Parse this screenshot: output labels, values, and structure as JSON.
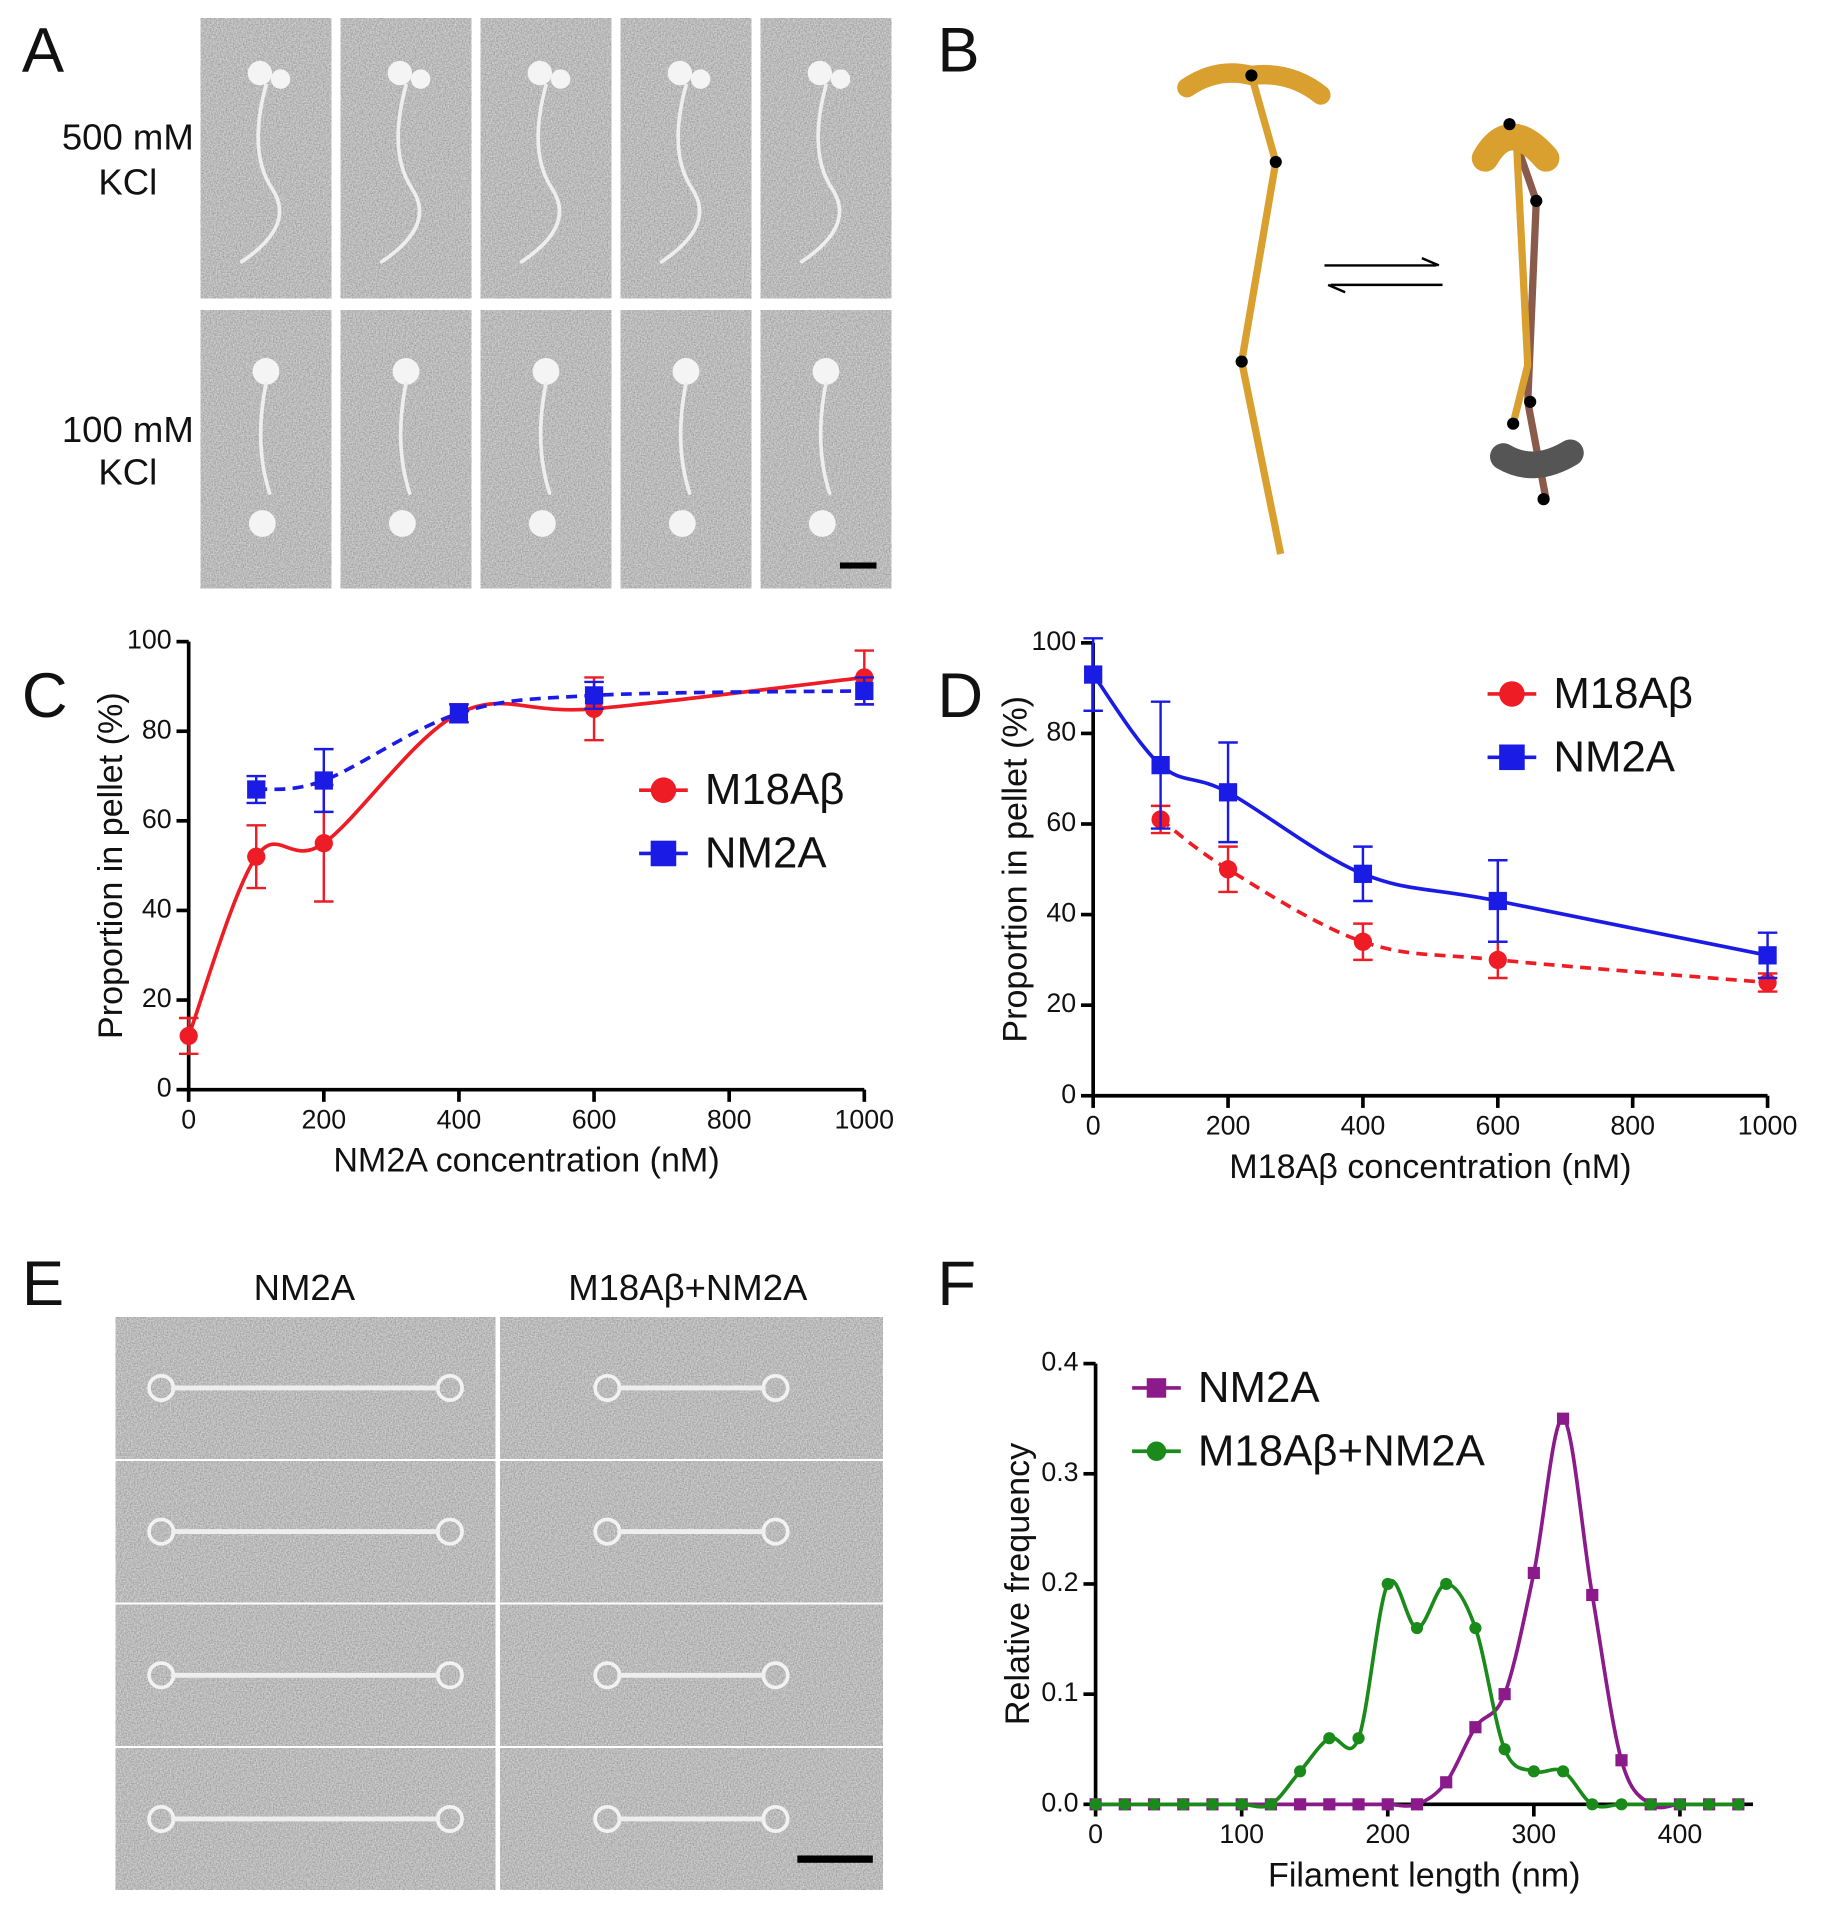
{
  "panel_labels": [
    "A",
    "B",
    "C",
    "D",
    "E",
    "F"
  ],
  "panel_a": {
    "row_labels": [
      [
        "500 mM",
        "KCl"
      ],
      [
        "100 mM",
        "KCl"
      ]
    ]
  },
  "panel_e": {
    "column_labels": [
      "NM2A",
      "M18Aβ+NM2A"
    ]
  },
  "chart_data": [
    {
      "type": "line",
      "xlabel": "NM2A concentration (nM)",
      "ylabel": "Proportion in pellet (%)",
      "x": [
        0,
        100,
        200,
        400,
        600,
        1000
      ],
      "xlim": [
        0,
        1000
      ],
      "xticks": [
        0,
        200,
        400,
        600,
        800,
        1000
      ],
      "ylim": [
        0,
        100
      ],
      "yticks": [
        0,
        20,
        40,
        60,
        80,
        100
      ],
      "legend": "right",
      "series": [
        {
          "name": "M18Aβ",
          "color": "#ee1c25",
          "marker": "circle",
          "linestyle": "solid",
          "values": [
            12,
            52,
            55,
            84,
            85,
            92
          ],
          "errors": [
            4,
            7,
            13,
            2,
            7,
            6
          ]
        },
        {
          "name": "NM2A",
          "color": "#1b1be6",
          "marker": "square",
          "linestyle": "dashed",
          "values": [
            null,
            67,
            69,
            84,
            88,
            89
          ],
          "errors": [
            null,
            3,
            7,
            2,
            3,
            3
          ]
        }
      ]
    },
    {
      "type": "line",
      "xlabel": "M18Aβ concentration (nM)",
      "ylabel": "Proportion in pellet (%)",
      "x": [
        0,
        100,
        200,
        400,
        600,
        1000
      ],
      "xlim": [
        0,
        1000
      ],
      "xticks": [
        0,
        200,
        400,
        600,
        800,
        1000
      ],
      "ylim": [
        0,
        100
      ],
      "yticks": [
        0,
        20,
        40,
        60,
        80,
        100
      ],
      "legend": "upper right",
      "series": [
        {
          "name": "M18Aβ",
          "color": "#ee1c25",
          "marker": "circle",
          "linestyle": "dashed",
          "values": [
            null,
            61,
            50,
            34,
            30,
            25
          ],
          "errors": [
            null,
            3,
            5,
            4,
            4,
            2
          ]
        },
        {
          "name": "NM2A",
          "color": "#1b1be6",
          "marker": "square",
          "linestyle": "solid",
          "values": [
            93,
            73,
            67,
            49,
            43,
            31
          ],
          "errors": [
            8,
            14,
            11,
            6,
            9,
            5
          ]
        }
      ]
    },
    {
      "type": "line",
      "xlabel": "Filament length (nm)",
      "ylabel": "Relative frequency",
      "x": [
        0,
        20,
        40,
        60,
        80,
        100,
        120,
        140,
        160,
        180,
        200,
        220,
        240,
        260,
        280,
        300,
        320,
        340,
        360,
        380,
        400,
        420,
        440
      ],
      "xlim": [
        0,
        450
      ],
      "xticks": [
        0,
        100,
        200,
        300,
        400
      ],
      "ylim": [
        0,
        0.4
      ],
      "yticks": [
        {
          "value": 0,
          "label": "0.0"
        },
        0.1,
        0.2,
        0.3,
        0.4
      ],
      "legend": "upper left",
      "series": [
        {
          "name": "NM2A",
          "color": "#8b1a8b",
          "marker": "square",
          "linestyle": "solid",
          "values": [
            0,
            0,
            0,
            0,
            0,
            0,
            0,
            0,
            0,
            0,
            0,
            0,
            0.02,
            0.07,
            0.1,
            0.21,
            0.35,
            0.19,
            0.04,
            0,
            0,
            0,
            0
          ]
        },
        {
          "name": "M18Aβ+NM2A",
          "color": "#1a8a1a",
          "marker": "circle",
          "linestyle": "solid",
          "values": [
            0,
            0,
            0,
            0,
            0,
            0,
            0,
            0.03,
            0.06,
            0.06,
            0.2,
            0.16,
            0.2,
            0.16,
            0.05,
            0.03,
            0.03,
            0,
            0,
            0,
            0,
            0,
            0
          ]
        }
      ]
    }
  ]
}
